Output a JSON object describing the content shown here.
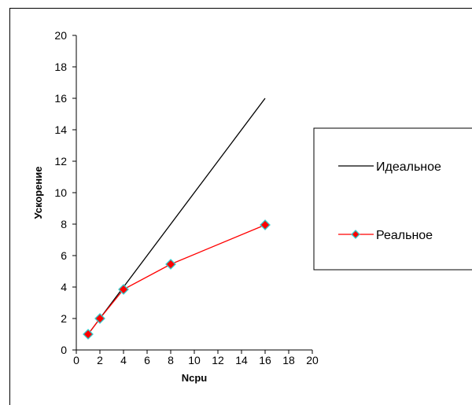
{
  "chart_data": {
    "type": "line",
    "xlabel": "Ncpu",
    "ylabel": "Ускорение",
    "xlim": [
      0,
      20
    ],
    "ylim": [
      0,
      20
    ],
    "x_ticks": [
      0,
      2,
      4,
      6,
      8,
      10,
      12,
      14,
      16,
      18,
      20
    ],
    "y_ticks": [
      0,
      2,
      4,
      6,
      8,
      10,
      12,
      14,
      16,
      18,
      20
    ],
    "grid": false,
    "legend_position": "right",
    "series": [
      {
        "name": "Идеальное",
        "color": "#000000",
        "marker": "none",
        "x": [
          1,
          2,
          4,
          8,
          16
        ],
        "y": [
          1,
          2,
          4,
          8,
          16
        ]
      },
      {
        "name": "Реальное",
        "color": "#ff0000",
        "marker": "diamond",
        "marker_edge_color": "#33cccc",
        "x": [
          1,
          2,
          4,
          8,
          16
        ],
        "y": [
          1.0,
          2.0,
          3.85,
          5.45,
          7.95
        ]
      }
    ]
  }
}
